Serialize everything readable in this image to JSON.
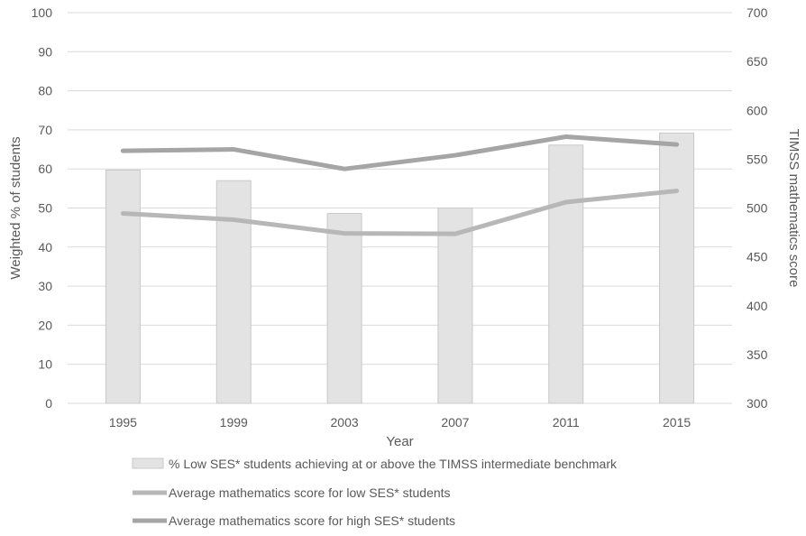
{
  "chart_data": {
    "type": "bar+line",
    "categories": [
      "1995",
      "1999",
      "2003",
      "2007",
      "2011",
      "2015"
    ],
    "xlabel": "Year",
    "ylabel_left": "Weighted % of students",
    "ylabel_right": "TIMSS mathematics score",
    "ylim_left": [
      0,
      100
    ],
    "ylim_right": [
      300,
      700
    ],
    "yticks_left": [
      "0",
      "10",
      "20",
      "30",
      "40",
      "50",
      "60",
      "70",
      "80",
      "90",
      "100"
    ],
    "yticks_right": [
      "300",
      "350",
      "400",
      "450",
      "500",
      "550",
      "600",
      "650",
      "700"
    ],
    "grid": true,
    "legend_position": "bottom",
    "series": [
      {
        "name": "% Low SES* students achieving at or above the TIMSS intermediate benchmark",
        "type": "bar",
        "axis": "left",
        "values": [
          59.7,
          57.0,
          48.6,
          50.0,
          66.1,
          69.2
        ],
        "color": "#e3e3e3",
        "stroke": "#c8c8c8"
      },
      {
        "name": "Average mathematics score for low SES* students",
        "type": "line",
        "axis": "right",
        "values": [
          494.5,
          488,
          474,
          473.5,
          506,
          517.5
        ],
        "color": "#b7b7b7"
      },
      {
        "name": "Average mathematics score for high SES* students",
        "type": "line",
        "axis": "right",
        "values": [
          558.5,
          560,
          540,
          554,
          573,
          565
        ],
        "color": "#a5a5a5"
      }
    ]
  }
}
